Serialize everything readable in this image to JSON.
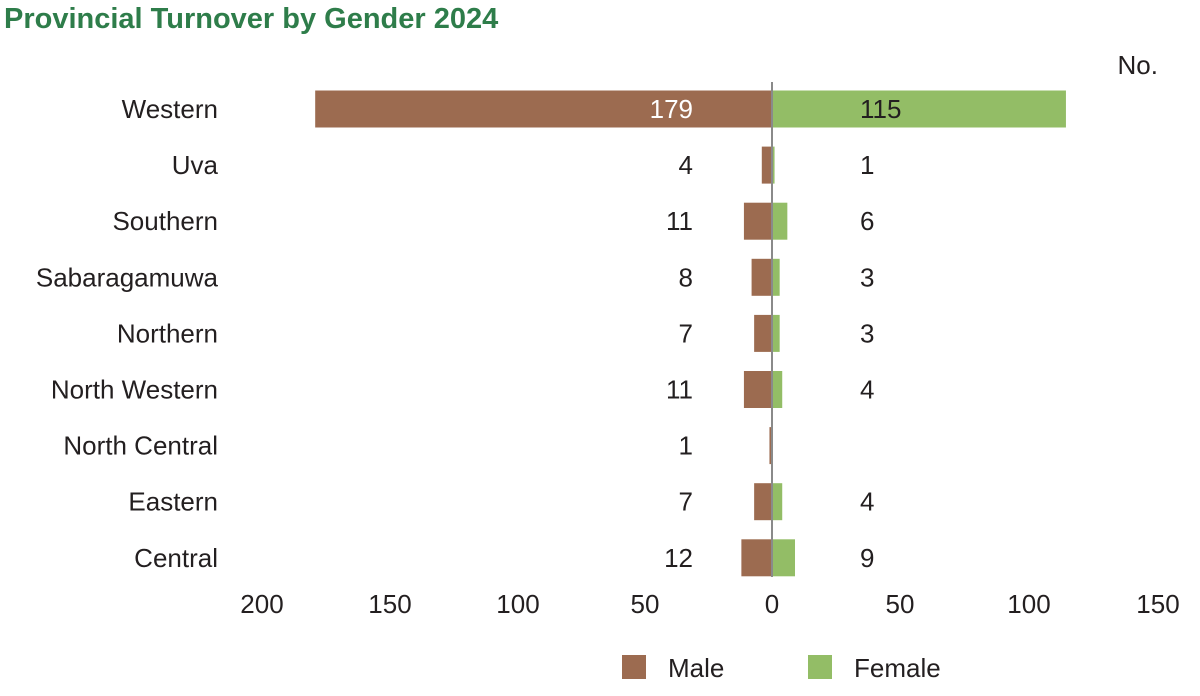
{
  "chart_data": {
    "type": "bar",
    "orientation": "horizontal-diverging",
    "title": "Provincial Turnover by Gender 2024",
    "unit_label": "No.",
    "categories": [
      "Western",
      "Uva",
      "Southern",
      "Sabaragamuwa",
      "Northern",
      "North Western",
      "North Central",
      "Eastern",
      "Central"
    ],
    "series": [
      {
        "name": "Male",
        "values": [
          179,
          4,
          11,
          8,
          7,
          11,
          1,
          7,
          12
        ],
        "color": "#9c6b50",
        "side": "left"
      },
      {
        "name": "Female",
        "values": [
          115,
          1,
          6,
          3,
          3,
          4,
          null,
          4,
          9
        ],
        "color": "#93bd66",
        "side": "right"
      }
    ],
    "x_ticks": {
      "left": [
        "200",
        "150",
        "100",
        "50"
      ],
      "center": "0",
      "right": [
        "50",
        "100",
        "150"
      ]
    },
    "xlim": [
      -200,
      150
    ],
    "title_color": "#2e7d4a",
    "axis_color": "#8a8a8a",
    "grid": false,
    "legend_position": "bottom"
  }
}
